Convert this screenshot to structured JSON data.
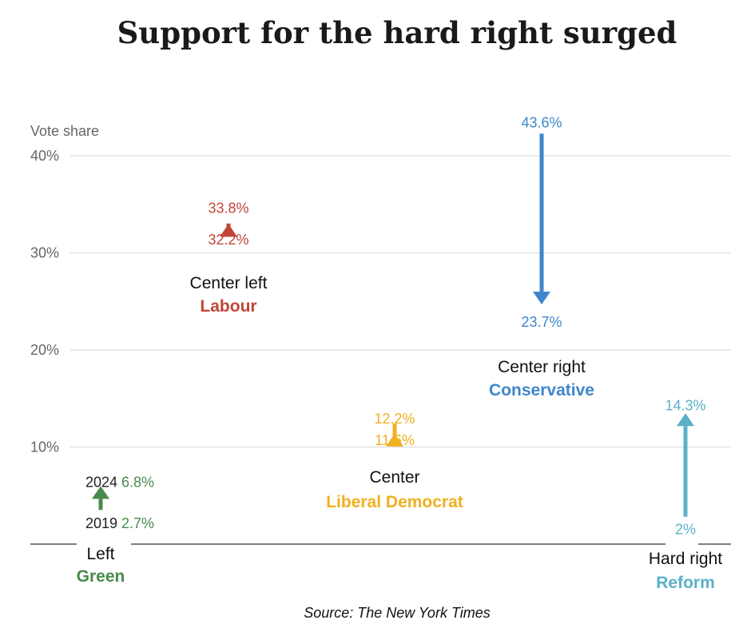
{
  "title": "Support for the hard right surged",
  "source": "Source: The New York Times",
  "colors": {
    "green": "#4a8a4c",
    "labour": "#c0463a",
    "libdem": "#f0b020",
    "conservative": "#3e86cc",
    "reform": "#5bb0c8",
    "grid": "#dddddd",
    "axis": "#333333"
  },
  "chart_data": {
    "type": "arrow-dumbbell",
    "ylabel": "Vote share",
    "yticks": [
      "10%",
      "20%",
      "30%",
      "40%"
    ],
    "ylim": [
      0,
      45
    ],
    "grid": true,
    "year_labels": {
      "from": "2019",
      "to": "2024"
    },
    "parties": [
      {
        "position": "Left",
        "party": "Green",
        "from": 2.7,
        "to": 6.8,
        "from_label": "2.7%",
        "to_label": "6.8%",
        "color": "#4a8a4c"
      },
      {
        "position": "Center left",
        "party": "Labour",
        "from": 32.2,
        "to": 33.8,
        "from_label": "32.2%",
        "to_label": "33.8%",
        "color": "#c0463a"
      },
      {
        "position": "Center",
        "party": "Liberal Democrat",
        "from": 11.6,
        "to": 12.2,
        "from_label": "11.6%",
        "to_label": "12.2%",
        "color": "#f0b020"
      },
      {
        "position": "Center right",
        "party": "Conservative",
        "from": 43.6,
        "to": 23.7,
        "from_label": "43.6%",
        "to_label": "23.7%",
        "color": "#3e86cc"
      },
      {
        "position": "Hard right",
        "party": "Reform",
        "from": 2,
        "to": 14.3,
        "from_label": "2%",
        "to_label": "14.3%",
        "color": "#5bb0c8"
      }
    ]
  }
}
